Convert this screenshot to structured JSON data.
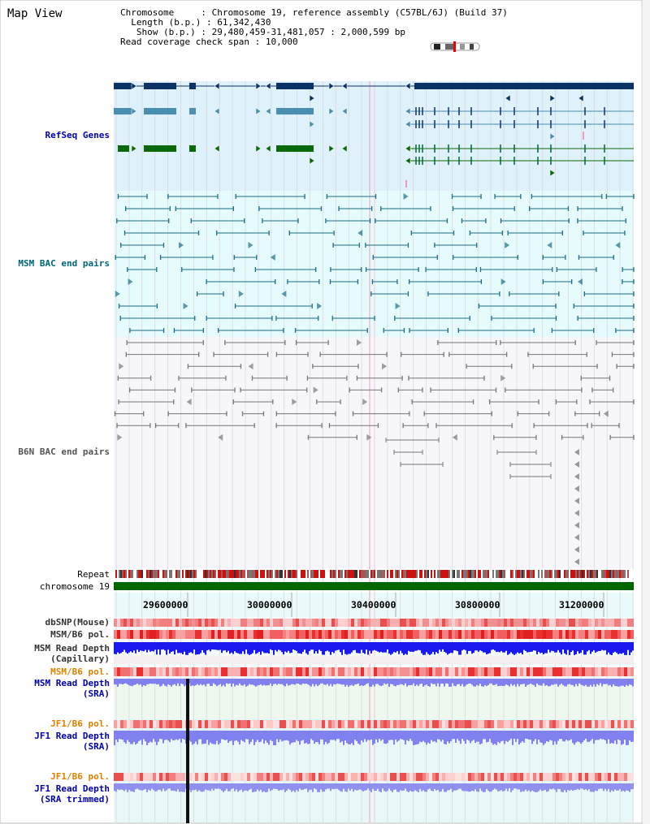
{
  "title": "Map View",
  "info": {
    "chromosome_key": "Chromosome",
    "chromosome_val": "Chromosome 19, reference assembly (C57BL/6J) (Build 37)",
    "length_key": "Length (b.p.)",
    "length_val": "61,342,430",
    "show_key": "Show (b.p.)",
    "show_val": "29,480,459-31,481,057 : 2,000,599 bp",
    "coverage_key": "Read coverage check span",
    "coverage_val": "10,000"
  },
  "tracks": {
    "refseq": "RefSeq Genes",
    "msm_bac": "MSM BAC end pairs",
    "b6n_bac": "B6N BAC end pairs",
    "repeat": "Repeat",
    "chromosome": "chromosome 19",
    "dbsnp": "dbSNP(Mouse)",
    "msm_b6_pol_1": "MSM/B6 pol.",
    "msm_read_depth_cap_1": "MSM Read Depth",
    "msm_read_depth_cap_2": "(Capillary)",
    "msm_b6_pol_2": "MSM/B6 pol.",
    "msm_read_depth_sra_1": "MSM Read Depth",
    "msm_read_depth_sra_2": "(SRA)",
    "jf1_b6_pol_1": "JF1/B6 pol.",
    "jf1_read_depth_sra_1": "JF1 Read Depth",
    "jf1_read_depth_sra_2": "(SRA)",
    "jf1_b6_pol_2": "JF1/B6 pol.",
    "jf1_read_depth_trim_1": "JF1 Read Depth",
    "jf1_read_depth_trim_2": "(SRA trimmed)"
  },
  "axis_ticks": [
    "29600000",
    "30000000",
    "30400000",
    "30800000",
    "31200000"
  ],
  "colors": {
    "refseq_bg": "#dff1fb",
    "msm_bg": "#e6fbfb",
    "b6n_bg": "#f6f6fb",
    "navy": "#0b3366",
    "steel": "#4a8fb0",
    "green": "#0a6a0a",
    "teal": "#1b6e86",
    "gray": "#777777",
    "chrom_green": "#006600",
    "pol_red": "#e83030",
    "depth_blue": "#1a1aee",
    "depth_light": "#8080ee",
    "orange_label": "#e08000",
    "blue_label": "#0000aa",
    "label_brown": "#333"
  }
}
